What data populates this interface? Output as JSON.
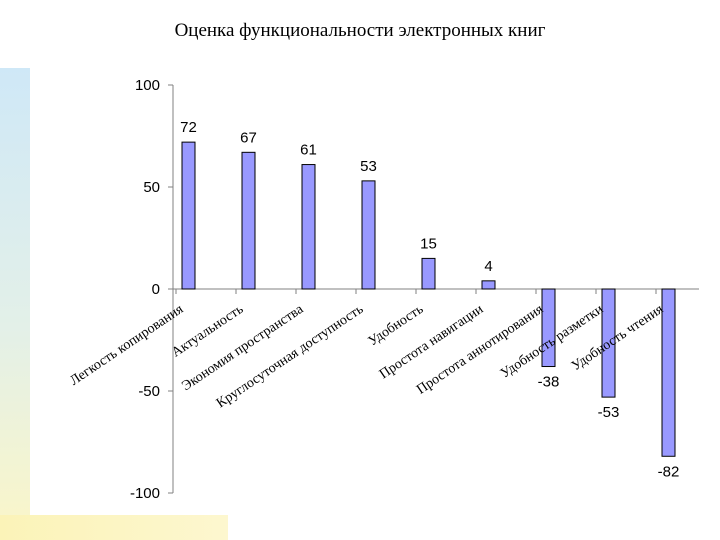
{
  "chart_data": {
    "type": "bar",
    "title": "Оценка функциональности электронных книг",
    "xlabel": "",
    "ylabel": "",
    "ylim": [
      -100,
      100
    ],
    "yticks": [
      100,
      50,
      0,
      -50,
      -100
    ],
    "grid": false,
    "legend": "none",
    "bar_color": "#9999ff",
    "bar_edge_color": "#000000",
    "categories": [
      "Легкость копирования",
      "Актуальность",
      "Экономия пространства",
      "Круглосуточная доступность",
      "Удобность",
      "Простота навигации",
      "Простота аннотирования",
      "Удобность разметки",
      "Удобность чтения"
    ],
    "values": [
      72,
      67,
      61,
      53,
      15,
      4,
      -38,
      -53,
      -82
    ]
  }
}
